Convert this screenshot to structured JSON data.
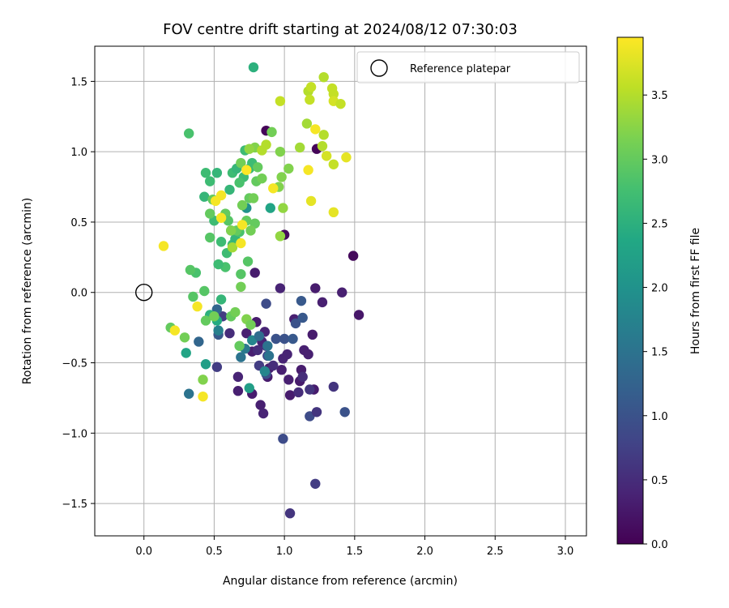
{
  "chart_data": {
    "type": "scatter",
    "title": "FOV centre drift starting at 2024/08/12 07:30:03",
    "xlabel": "Angular distance from reference (arcmin)",
    "ylabel": "Rotation from reference (arcmin)",
    "xlim": [
      -0.35,
      3.15
    ],
    "ylim": [
      -1.73,
      1.75
    ],
    "xticks": [
      0.0,
      0.5,
      1.0,
      1.5,
      2.0,
      2.5,
      3.0
    ],
    "xtick_labels": [
      "0.0",
      "0.5",
      "1.0",
      "1.5",
      "2.0",
      "2.5",
      "3.0"
    ],
    "yticks": [
      -1.5,
      -1.0,
      -0.5,
      0.0,
      0.5,
      1.0,
      1.5
    ],
    "ytick_labels": [
      "−1.5",
      "−1.0",
      "−0.5",
      "0.0",
      "0.5",
      "1.0",
      "1.5"
    ],
    "grid": true,
    "legend": {
      "placement": "top-right",
      "entries": [
        {
          "label": "Reference platepar",
          "marker": "open-circle"
        }
      ]
    },
    "reference_point": {
      "x": 0.0,
      "y": 0.0
    },
    "colorbar": {
      "label": "Hours from first FF file",
      "colormap": "viridis",
      "range": [
        0.0,
        3.95
      ],
      "ticks": [
        0.0,
        0.5,
        1.0,
        1.5,
        2.0,
        2.5,
        3.0,
        3.5
      ],
      "tick_labels": [
        "0.0",
        "0.5",
        "1.0",
        "1.5",
        "2.0",
        "2.5",
        "3.0",
        "3.5"
      ]
    },
    "points": [
      {
        "x": 0.87,
        "y": 1.15,
        "c": 0.05
      },
      {
        "x": 1.23,
        "y": 1.02,
        "c": 0.05
      },
      {
        "x": 1.0,
        "y": 0.41,
        "c": 0.1
      },
      {
        "x": 1.49,
        "y": 0.26,
        "c": 0.1
      },
      {
        "x": 1.53,
        "y": -0.16,
        "c": 0.25
      },
      {
        "x": 0.79,
        "y": 0.14,
        "c": 0.3
      },
      {
        "x": 1.22,
        "y": 0.03,
        "c": 0.3
      },
      {
        "x": 1.41,
        "y": 0.0,
        "c": 0.35
      },
      {
        "x": 1.27,
        "y": -0.07,
        "c": 0.35
      },
      {
        "x": 0.97,
        "y": 0.03,
        "c": 0.4
      },
      {
        "x": 1.07,
        "y": -0.19,
        "c": 0.35
      },
      {
        "x": 1.2,
        "y": -0.3,
        "c": 0.3
      },
      {
        "x": 1.12,
        "y": -0.55,
        "c": 0.3
      },
      {
        "x": 1.11,
        "y": -0.63,
        "c": 0.3
      },
      {
        "x": 1.04,
        "y": -0.73,
        "c": 0.3
      },
      {
        "x": 1.21,
        "y": -0.69,
        "c": 0.3
      },
      {
        "x": 1.14,
        "y": -0.41,
        "c": 0.35
      },
      {
        "x": 1.17,
        "y": -0.44,
        "c": 0.35
      },
      {
        "x": 1.02,
        "y": -0.44,
        "c": 0.4
      },
      {
        "x": 0.99,
        "y": -0.47,
        "c": 0.4
      },
      {
        "x": 0.98,
        "y": -0.55,
        "c": 0.35
      },
      {
        "x": 1.03,
        "y": -0.62,
        "c": 0.35
      },
      {
        "x": 0.88,
        "y": -0.6,
        "c": 0.3
      },
      {
        "x": 0.89,
        "y": -0.54,
        "c": 0.3
      },
      {
        "x": 0.77,
        "y": -0.72,
        "c": 0.3
      },
      {
        "x": 0.83,
        "y": -0.8,
        "c": 0.35
      },
      {
        "x": 0.85,
        "y": -0.86,
        "c": 0.4
      },
      {
        "x": 0.67,
        "y": -0.7,
        "c": 0.35
      },
      {
        "x": 0.67,
        "y": -0.6,
        "c": 0.4
      },
      {
        "x": 0.73,
        "y": -0.29,
        "c": 0.35
      },
      {
        "x": 0.8,
        "y": -0.21,
        "c": 0.3
      },
      {
        "x": 0.86,
        "y": -0.28,
        "c": 0.4
      },
      {
        "x": 0.87,
        "y": -0.38,
        "c": 0.6
      },
      {
        "x": 0.84,
        "y": -0.35,
        "c": 0.4
      },
      {
        "x": 0.77,
        "y": -0.42,
        "c": 0.35
      },
      {
        "x": 0.81,
        "y": -0.41,
        "c": 0.5
      },
      {
        "x": 0.88,
        "y": -0.45,
        "c": 0.8
      },
      {
        "x": 0.92,
        "y": -0.52,
        "c": 0.5
      },
      {
        "x": 0.82,
        "y": -0.52,
        "c": 0.7
      },
      {
        "x": 0.87,
        "y": -0.58,
        "c": 1.0
      },
      {
        "x": 0.87,
        "y": -0.08,
        "c": 0.9
      },
      {
        "x": 0.94,
        "y": -0.33,
        "c": 1.0
      },
      {
        "x": 1.0,
        "y": -0.33,
        "c": 1.0
      },
      {
        "x": 1.06,
        "y": -0.33,
        "c": 1.1
      },
      {
        "x": 1.08,
        "y": -0.22,
        "c": 1.0
      },
      {
        "x": 1.13,
        "y": -0.18,
        "c": 1.1
      },
      {
        "x": 1.12,
        "y": -0.06,
        "c": 1.1
      },
      {
        "x": 1.13,
        "y": -0.6,
        "c": 0.5
      },
      {
        "x": 1.1,
        "y": -0.71,
        "c": 0.5
      },
      {
        "x": 1.18,
        "y": -0.69,
        "c": 0.6
      },
      {
        "x": 1.18,
        "y": -0.88,
        "c": 0.9
      },
      {
        "x": 1.23,
        "y": -0.85,
        "c": 0.6
      },
      {
        "x": 1.43,
        "y": -0.85,
        "c": 1.0
      },
      {
        "x": 1.35,
        "y": -0.67,
        "c": 0.6
      },
      {
        "x": 0.99,
        "y": -1.04,
        "c": 0.9
      },
      {
        "x": 1.22,
        "y": -1.36,
        "c": 0.7
      },
      {
        "x": 1.04,
        "y": -1.57,
        "c": 0.6
      },
      {
        "x": 0.52,
        "y": -0.53,
        "c": 0.7
      },
      {
        "x": 0.56,
        "y": -0.17,
        "c": 0.7
      },
      {
        "x": 0.61,
        "y": -0.29,
        "c": 0.5
      },
      {
        "x": 0.53,
        "y": -0.3,
        "c": 1.1
      },
      {
        "x": 0.52,
        "y": -0.12,
        "c": 1.3
      },
      {
        "x": 0.39,
        "y": -0.35,
        "c": 1.3
      },
      {
        "x": 0.32,
        "y": -0.72,
        "c": 1.5
      },
      {
        "x": 0.69,
        "y": -0.46,
        "c": 1.5
      },
      {
        "x": 0.77,
        "y": -0.34,
        "c": 1.8
      },
      {
        "x": 0.72,
        "y": -0.4,
        "c": 1.6
      },
      {
        "x": 0.89,
        "y": -0.45,
        "c": 1.5
      },
      {
        "x": 0.86,
        "y": -0.56,
        "c": 1.8
      },
      {
        "x": 0.88,
        "y": -0.38,
        "c": 1.5
      },
      {
        "x": 0.82,
        "y": -0.31,
        "c": 1.4
      },
      {
        "x": 0.53,
        "y": -0.27,
        "c": 1.7
      },
      {
        "x": 0.62,
        "y": 0.44,
        "c": 2.0
      },
      {
        "x": 0.73,
        "y": 0.6,
        "c": 2.0
      },
      {
        "x": 0.9,
        "y": 0.6,
        "c": 2.3
      },
      {
        "x": 0.78,
        "y": 1.6,
        "c": 2.5
      },
      {
        "x": 0.44,
        "y": -0.51,
        "c": 2.2
      },
      {
        "x": 0.3,
        "y": -0.43,
        "c": 2.3
      },
      {
        "x": 0.75,
        "y": -0.68,
        "c": 2.2
      },
      {
        "x": 0.75,
        "y": 0.88,
        "c": 2.6
      },
      {
        "x": 0.77,
        "y": 0.92,
        "c": 2.7
      },
      {
        "x": 0.47,
        "y": -0.16,
        "c": 2.5
      },
      {
        "x": 0.52,
        "y": -0.2,
        "c": 2.4
      },
      {
        "x": 0.55,
        "y": -0.05,
        "c": 2.6
      },
      {
        "x": 0.52,
        "y": 0.85,
        "c": 2.6
      },
      {
        "x": 0.44,
        "y": 0.85,
        "c": 2.7
      },
      {
        "x": 0.43,
        "y": 0.68,
        "c": 2.6
      },
      {
        "x": 0.47,
        "y": 0.79,
        "c": 2.7
      },
      {
        "x": 0.63,
        "y": 0.85,
        "c": 2.7
      },
      {
        "x": 0.66,
        "y": 0.88,
        "c": 2.6
      },
      {
        "x": 0.71,
        "y": 0.82,
        "c": 2.7
      },
      {
        "x": 0.61,
        "y": 0.73,
        "c": 2.6
      },
      {
        "x": 0.68,
        "y": 0.78,
        "c": 2.8
      },
      {
        "x": 0.72,
        "y": 1.01,
        "c": 2.7
      },
      {
        "x": 0.5,
        "y": 0.51,
        "c": 2.7
      },
      {
        "x": 0.55,
        "y": 0.36,
        "c": 2.7
      },
      {
        "x": 0.59,
        "y": 0.28,
        "c": 2.7
      },
      {
        "x": 0.63,
        "y": 0.34,
        "c": 2.7
      },
      {
        "x": 0.65,
        "y": 0.38,
        "c": 2.6
      },
      {
        "x": 0.68,
        "y": 0.43,
        "c": 2.8
      },
      {
        "x": 0.58,
        "y": 0.18,
        "c": 2.8
      },
      {
        "x": 0.53,
        "y": 0.2,
        "c": 2.7
      },
      {
        "x": 0.32,
        "y": 1.13,
        "c": 2.8
      },
      {
        "x": 0.37,
        "y": 0.14,
        "c": 2.8
      },
      {
        "x": 0.33,
        "y": 0.16,
        "c": 2.9
      },
      {
        "x": 0.35,
        "y": -0.03,
        "c": 2.9
      },
      {
        "x": 0.43,
        "y": 0.01,
        "c": 2.9
      },
      {
        "x": 0.47,
        "y": 0.39,
        "c": 2.9
      },
      {
        "x": 0.47,
        "y": 0.56,
        "c": 3.0
      },
      {
        "x": 0.49,
        "y": 0.66,
        "c": 3.0
      },
      {
        "x": 0.58,
        "y": 0.56,
        "c": 3.0
      },
      {
        "x": 0.6,
        "y": 0.51,
        "c": 2.9
      },
      {
        "x": 0.66,
        "y": 0.44,
        "c": 3.0
      },
      {
        "x": 0.73,
        "y": 0.51,
        "c": 3.0
      },
      {
        "x": 0.79,
        "y": 0.49,
        "c": 3.0
      },
      {
        "x": 0.76,
        "y": 0.44,
        "c": 3.1
      },
      {
        "x": 0.7,
        "y": 0.62,
        "c": 3.1
      },
      {
        "x": 0.75,
        "y": 0.67,
        "c": 3.0
      },
      {
        "x": 0.78,
        "y": 0.67,
        "c": 3.1
      },
      {
        "x": 0.8,
        "y": 0.79,
        "c": 3.0
      },
      {
        "x": 0.84,
        "y": 0.81,
        "c": 3.1
      },
      {
        "x": 0.81,
        "y": 0.89,
        "c": 3.0
      },
      {
        "x": 0.69,
        "y": 0.92,
        "c": 3.1
      },
      {
        "x": 0.79,
        "y": 1.03,
        "c": 3.2
      },
      {
        "x": 0.91,
        "y": 1.14,
        "c": 3.1
      },
      {
        "x": 0.97,
        "y": 1.0,
        "c": 3.2
      },
      {
        "x": 1.03,
        "y": 0.88,
        "c": 3.2
      },
      {
        "x": 0.96,
        "y": 0.75,
        "c": 3.2
      },
      {
        "x": 0.98,
        "y": 0.82,
        "c": 3.2
      },
      {
        "x": 0.99,
        "y": 0.6,
        "c": 3.3
      },
      {
        "x": 0.97,
        "y": 0.4,
        "c": 3.3
      },
      {
        "x": 1.11,
        "y": 1.03,
        "c": 3.4
      },
      {
        "x": 1.16,
        "y": 1.2,
        "c": 3.4
      },
      {
        "x": 1.17,
        "y": 1.43,
        "c": 3.5
      },
      {
        "x": 1.18,
        "y": 1.37,
        "c": 3.6
      },
      {
        "x": 1.19,
        "y": 1.46,
        "c": 3.6
      },
      {
        "x": 1.28,
        "y": 1.53,
        "c": 3.5
      },
      {
        "x": 1.34,
        "y": 1.45,
        "c": 3.6
      },
      {
        "x": 1.35,
        "y": 1.41,
        "c": 3.6
      },
      {
        "x": 1.35,
        "y": 1.36,
        "c": 3.7
      },
      {
        "x": 1.4,
        "y": 1.34,
        "c": 3.6
      },
      {
        "x": 1.28,
        "y": 1.12,
        "c": 3.5
      },
      {
        "x": 1.27,
        "y": 1.04,
        "c": 3.5
      },
      {
        "x": 1.3,
        "y": 0.97,
        "c": 3.7
      },
      {
        "x": 1.35,
        "y": 0.91,
        "c": 3.6
      },
      {
        "x": 1.44,
        "y": 0.96,
        "c": 3.8
      },
      {
        "x": 1.19,
        "y": 0.65,
        "c": 3.8
      },
      {
        "x": 1.35,
        "y": 0.57,
        "c": 3.8
      },
      {
        "x": 1.22,
        "y": 1.16,
        "c": 3.9
      },
      {
        "x": 1.17,
        "y": 0.87,
        "c": 3.9
      },
      {
        "x": 0.97,
        "y": 1.36,
        "c": 3.6
      },
      {
        "x": 0.87,
        "y": 1.05,
        "c": 3.5
      },
      {
        "x": 0.84,
        "y": 1.01,
        "c": 3.5
      },
      {
        "x": 0.75,
        "y": 1.02,
        "c": 3.3
      },
      {
        "x": 0.62,
        "y": 0.44,
        "c": 3.2
      },
      {
        "x": 0.63,
        "y": 0.32,
        "c": 3.4
      },
      {
        "x": 0.69,
        "y": 0.04,
        "c": 3.1
      },
      {
        "x": 0.74,
        "y": 0.22,
        "c": 2.9
      },
      {
        "x": 0.69,
        "y": 0.13,
        "c": 2.9
      },
      {
        "x": 0.62,
        "y": -0.17,
        "c": 3.0
      },
      {
        "x": 0.65,
        "y": -0.14,
        "c": 3.1
      },
      {
        "x": 0.73,
        "y": -0.19,
        "c": 3.2
      },
      {
        "x": 0.76,
        "y": -0.23,
        "c": 3.1
      },
      {
        "x": 0.68,
        "y": -0.38,
        "c": 3.0
      },
      {
        "x": 0.44,
        "y": -0.2,
        "c": 3.0
      },
      {
        "x": 0.5,
        "y": -0.17,
        "c": 3.1
      },
      {
        "x": 0.42,
        "y": -0.62,
        "c": 3.2
      },
      {
        "x": 0.29,
        "y": -0.32,
        "c": 3.1
      },
      {
        "x": 0.19,
        "y": -0.25,
        "c": 3.0
      },
      {
        "x": 0.22,
        "y": -0.27,
        "c": 3.9
      },
      {
        "x": 0.14,
        "y": 0.33,
        "c": 3.9
      },
      {
        "x": 0.38,
        "y": -0.1,
        "c": 3.9
      },
      {
        "x": 0.42,
        "y": -0.74,
        "c": 3.9
      },
      {
        "x": 0.51,
        "y": 0.65,
        "c": 3.9
      },
      {
        "x": 0.55,
        "y": 0.69,
        "c": 3.9
      },
      {
        "x": 0.55,
        "y": 0.53,
        "c": 3.9
      },
      {
        "x": 0.7,
        "y": 0.48,
        "c": 3.9
      },
      {
        "x": 0.69,
        "y": 0.35,
        "c": 3.9
      },
      {
        "x": 0.73,
        "y": 0.87,
        "c": 3.95
      },
      {
        "x": 0.92,
        "y": 0.74,
        "c": 3.9
      }
    ]
  }
}
